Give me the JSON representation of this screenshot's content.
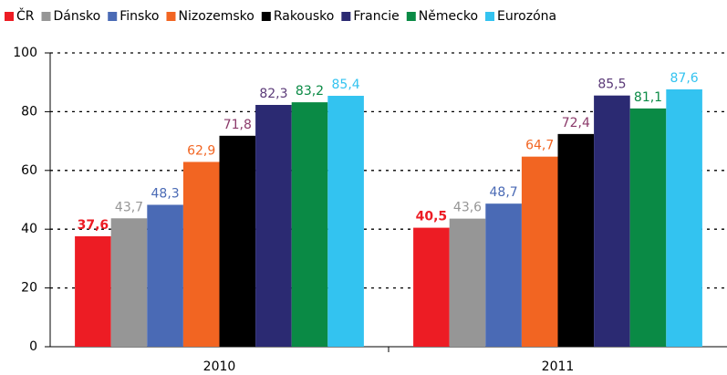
{
  "chart_data": {
    "type": "bar",
    "categories": [
      "2010",
      "2011"
    ],
    "series": [
      {
        "name": "ČR",
        "color": "#ed1c24",
        "label_color": "#ed1c24",
        "values": [
          37.6,
          40.5
        ],
        "value_labels": [
          "37,6",
          "40,5"
        ]
      },
      {
        "name": "Dánsko",
        "color": "#969696",
        "label_color": "#969696",
        "values": [
          43.7,
          43.6
        ],
        "value_labels": [
          "43,7",
          "43,6"
        ]
      },
      {
        "name": "Finsko",
        "color": "#4a6ab5",
        "label_color": "#4a6ab5",
        "values": [
          48.3,
          48.7
        ],
        "value_labels": [
          "48,3",
          "48,7"
        ]
      },
      {
        "name": "Nizozemsko",
        "color": "#f26522",
        "label_color": "#f26522",
        "values": [
          62.9,
          64.7
        ],
        "value_labels": [
          "62,9",
          "64,7"
        ]
      },
      {
        "name": "Rakousko",
        "color": "#000000",
        "label_color": "#8b3a6a",
        "values": [
          71.8,
          72.4
        ],
        "value_labels": [
          "71,8",
          "72,4"
        ]
      },
      {
        "name": "Francie",
        "color": "#2b2a72",
        "label_color": "#5b3a78",
        "values": [
          82.3,
          85.5
        ],
        "value_labels": [
          "82,3",
          "85,5"
        ]
      },
      {
        "name": "Německo",
        "color": "#0a8a45",
        "label_color": "#0a8a45",
        "values": [
          83.2,
          81.1
        ],
        "value_labels": [
          "83,2",
          "81,1"
        ]
      },
      {
        "name": "Eurozóna",
        "color": "#33c3f0",
        "label_color": "#33c3f0",
        "values": [
          85.4,
          87.6
        ],
        "value_labels": [
          "85,4",
          "87,6"
        ]
      }
    ],
    "ylim": [
      0,
      100
    ],
    "yticks": [
      0,
      20,
      40,
      60,
      80,
      100
    ],
    "grid": true,
    "legend": "top"
  }
}
